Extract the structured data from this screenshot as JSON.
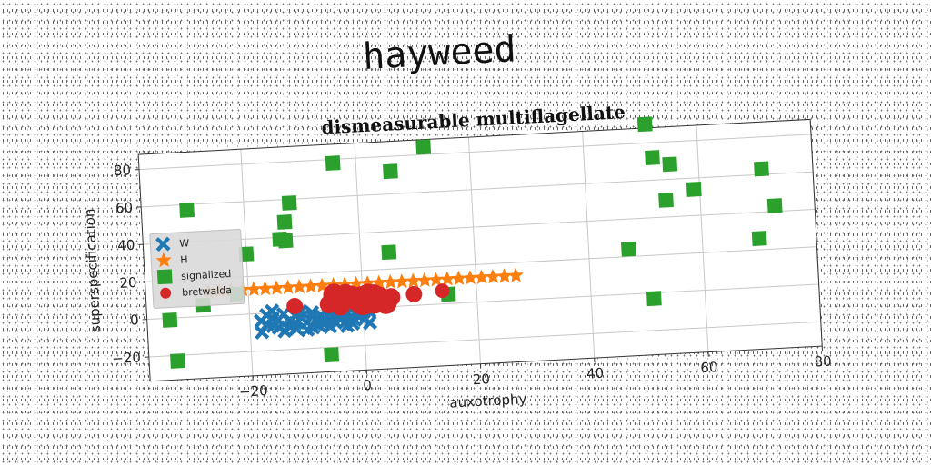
{
  "suptitle": "hayweed",
  "chart_data": {
    "type": "scatter",
    "title": "dismeasurable multiflagellate",
    "xlabel": "auxotrophy",
    "ylabel": "superspecification",
    "xlim": [
      -38,
      80
    ],
    "ylim": [
      -33,
      88
    ],
    "xticks": [
      -20,
      0,
      20,
      40,
      60,
      80
    ],
    "yticks": [
      -20,
      0,
      20,
      40,
      60,
      80
    ],
    "xtick_labels": [
      "−20",
      "0",
      "20",
      "40",
      "60",
      "80"
    ],
    "ytick_labels": [
      "−20",
      "0",
      "20",
      "40",
      "60",
      "80"
    ],
    "grid": true,
    "legend_loc": "center-left",
    "series": [
      {
        "name": "W",
        "marker": "X",
        "color": "#1f77b4",
        "points": [
          [
            -18,
            -10
          ],
          [
            -17,
            -6
          ],
          [
            -16,
            -3
          ],
          [
            -15,
            -8
          ],
          [
            -14,
            -1
          ],
          [
            -13,
            -5
          ],
          [
            -12,
            -9
          ],
          [
            -11,
            -3
          ],
          [
            -10,
            -6
          ],
          [
            -9,
            -1
          ],
          [
            -8,
            -8
          ],
          [
            -7,
            -4
          ],
          [
            -6,
            -2
          ],
          [
            -5,
            -7
          ],
          [
            -4,
            -5
          ],
          [
            -3,
            -3
          ],
          [
            -2,
            -8
          ],
          [
            -1,
            -4
          ],
          [
            0,
            -6
          ],
          [
            1,
            -2
          ],
          [
            -17,
            -1
          ],
          [
            -15,
            -4
          ],
          [
            -13,
            -8
          ],
          [
            -11,
            0
          ],
          [
            -9,
            -9
          ],
          [
            -7,
            -7
          ],
          [
            -5,
            -3
          ],
          [
            -3,
            -9
          ],
          [
            -1,
            -1
          ],
          [
            1,
            -8
          ],
          [
            -16,
            -7
          ],
          [
            -14,
            -10
          ],
          [
            -12,
            -2
          ],
          [
            -10,
            -10
          ],
          [
            -8,
            -4
          ],
          [
            -6,
            -6
          ],
          [
            -4,
            -2
          ],
          [
            -2,
            -5
          ],
          [
            0,
            -2
          ],
          [
            -18,
            -4
          ],
          [
            -16,
            1
          ],
          [
            -12,
            -6
          ],
          [
            -9,
            -3
          ],
          [
            -6,
            -9
          ],
          [
            -3,
            -6
          ]
        ]
      },
      {
        "name": "H",
        "marker": "*",
        "color": "#ff7f0e",
        "points": [
          [
            -27,
            13
          ],
          [
            -25,
            13
          ],
          [
            -23,
            13
          ],
          [
            -21,
            13
          ],
          [
            -19,
            13
          ],
          [
            -17,
            13
          ],
          [
            -15,
            13
          ],
          [
            -13,
            13
          ],
          [
            -11,
            13
          ],
          [
            -9,
            13
          ],
          [
            -7,
            13
          ],
          [
            -5,
            13
          ],
          [
            -3,
            13
          ],
          [
            -1,
            13
          ],
          [
            1,
            13
          ],
          [
            3,
            13
          ],
          [
            5,
            13
          ],
          [
            7,
            13
          ],
          [
            9,
            13
          ],
          [
            11,
            13
          ],
          [
            13,
            13
          ],
          [
            15,
            13
          ],
          [
            17,
            13
          ],
          [
            19,
            13
          ],
          [
            21,
            13
          ],
          [
            23,
            13
          ],
          [
            25,
            13
          ],
          [
            27,
            13
          ]
        ]
      },
      {
        "name": "signalized",
        "marker": "s",
        "color": "#2ca02c",
        "points": [
          [
            -33,
            -23
          ],
          [
            -34,
            -1
          ],
          [
            -30,
            57
          ],
          [
            -28,
            6
          ],
          [
            -22,
            11
          ],
          [
            -20,
            32
          ],
          [
            -14,
            39
          ],
          [
            -13,
            38
          ],
          [
            -13,
            48
          ],
          [
            -12,
            58
          ],
          [
            -6,
            -24
          ],
          [
            -4,
            78
          ],
          [
            5,
            29
          ],
          [
            6,
            72
          ],
          [
            12,
            84
          ],
          [
            15,
            5
          ],
          [
            47,
            24
          ],
          [
            51,
            -3
          ],
          [
            51,
            90
          ],
          [
            52,
            72
          ],
          [
            54,
            49
          ],
          [
            55,
            68
          ],
          [
            59,
            54
          ],
          [
            70,
            26
          ],
          [
            71,
            63
          ],
          [
            73,
            43
          ]
        ]
      },
      {
        "name": "bretwalda",
        "marker": "o",
        "color": "#d62728",
        "points": [
          [
            -12,
            3
          ],
          [
            -6,
            3
          ],
          [
            -5,
            8
          ],
          [
            -4,
            2
          ],
          [
            -3,
            5
          ],
          [
            -2,
            7
          ],
          [
            0,
            4
          ],
          [
            1,
            6
          ],
          [
            2,
            3
          ],
          [
            3,
            5
          ],
          [
            4,
            2
          ],
          [
            5,
            5
          ],
          [
            2,
            7
          ],
          [
            9,
            6
          ],
          [
            14,
            7
          ],
          [
            -3,
            9
          ]
        ],
        "sizes": [
          9,
          10,
          12,
          11,
          10,
          11,
          16,
          14,
          13,
          12,
          12,
          10,
          11,
          9,
          8,
          9
        ]
      }
    ]
  }
}
